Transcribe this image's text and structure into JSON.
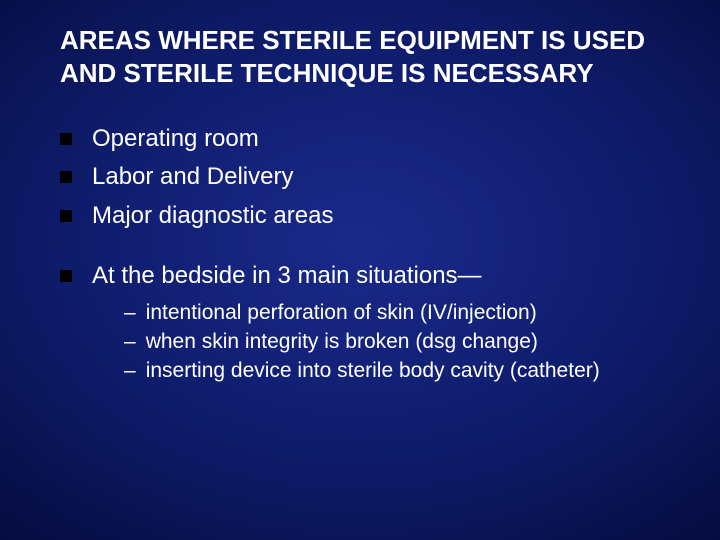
{
  "slide": {
    "title": "AREAS WHERE STERILE EQUIPMENT IS USED AND STERILE TECHNIQUE IS NECESSARY",
    "title_fontsize": 26,
    "body_fontsize": 24,
    "sub_fontsize": 21,
    "text_color": "#ffffff",
    "bullet_color": "#000000",
    "background_gradient": {
      "inner": "#1a2a8a",
      "mid": "#0f1d6e",
      "outer": "#000014"
    },
    "bullets_group1": [
      "Operating room",
      "Labor and Delivery",
      "Major diagnostic areas"
    ],
    "bullets_group2": {
      "lead": "At the bedside in 3 main situations—",
      "subs": [
        "intentional perforation of skin (IV/injection)",
        "when skin integrity is broken (dsg change)",
        "inserting device into sterile body cavity (catheter)"
      ]
    }
  }
}
